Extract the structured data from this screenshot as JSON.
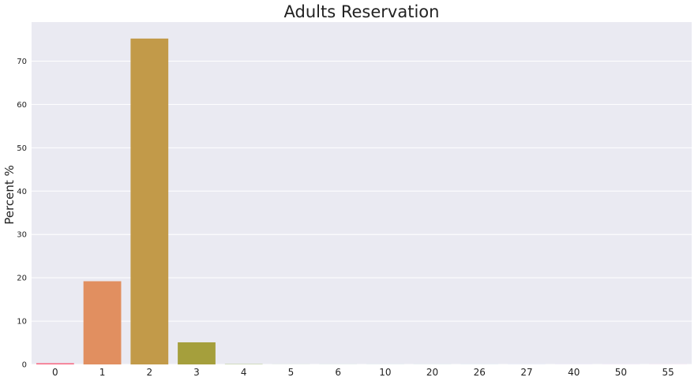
{
  "chart_data": {
    "type": "bar",
    "title": "Adults Reservation",
    "xlabel": "",
    "ylabel": "Percent %",
    "categories": [
      "0",
      "1",
      "2",
      "3",
      "4",
      "5",
      "6",
      "10",
      "20",
      "26",
      "27",
      "40",
      "50",
      "55"
    ],
    "values": [
      0.3,
      19.2,
      75.2,
      5.1,
      0.05,
      0.01,
      0.01,
      0.01,
      0.01,
      0.01,
      0.01,
      0.01,
      0.01,
      0.01
    ],
    "colors": [
      "#f77189",
      "#e18f60",
      "#c29a49",
      "#a59f3c",
      "#83a831",
      "#50b131",
      "#36ad78",
      "#38aa95",
      "#39a7ab",
      "#3ca4c5",
      "#5c98f0",
      "#a48cf4",
      "#e06ff4",
      "#f668c2"
    ],
    "ylim": [
      0,
      79
    ],
    "yticks": [
      0,
      10,
      20,
      30,
      40,
      50,
      60,
      70
    ],
    "grid": true,
    "background": "#eaeaf2",
    "grid_color": "#ffffff",
    "legend": "none"
  }
}
